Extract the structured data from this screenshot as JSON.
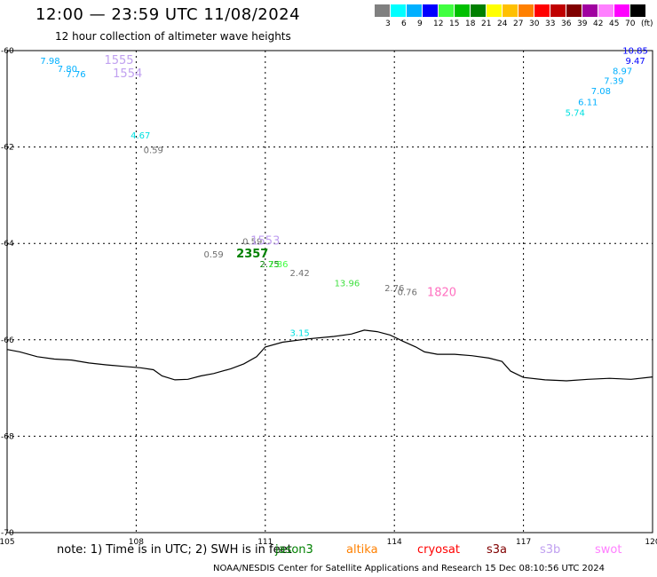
{
  "header": {
    "title": "12:00 — 23:59 UTC 11/08/2024",
    "subtitle": "12 hour collection of altimeter wave heights"
  },
  "colorbar": {
    "colors": [
      "#808080",
      "#00ffff",
      "#00b0ff",
      "#0000ff",
      "#40ff40",
      "#00c000",
      "#008000",
      "#ffff00",
      "#ffc000",
      "#ff8000",
      "#ff0000",
      "#c00000",
      "#800000",
      "#a000a0",
      "#ff80ff",
      "#ff00ff",
      "#000000"
    ],
    "labels": [
      "3",
      "6",
      "9",
      "12",
      "15",
      "18",
      "21",
      "24",
      "27",
      "30",
      "33",
      "36",
      "39",
      "42",
      "45",
      "70"
    ],
    "unit": "(ft)"
  },
  "axes": {
    "x_ticks": [
      "105",
      "108",
      "111",
      "114",
      "117",
      "120"
    ],
    "y_ticks": [
      "-60",
      "-62",
      "-64",
      "-66",
      "-68",
      "-70"
    ]
  },
  "observations": [
    {
      "lon": 106.0,
      "lat": -60.2,
      "text": "7.98",
      "color": "#00b0ff"
    },
    {
      "lon": 106.4,
      "lat": -60.37,
      "text": "7.80",
      "color": "#00b0ff"
    },
    {
      "lon": 106.6,
      "lat": -60.48,
      "text": "7.76",
      "color": "#00b0ff"
    },
    {
      "lon": 107.6,
      "lat": -60.2,
      "text": "1555",
      "color": "#c0a0f0"
    },
    {
      "lon": 107.8,
      "lat": -60.48,
      "text": "1554",
      "color": "#c0a0f0"
    },
    {
      "lon": 108.1,
      "lat": -61.75,
      "text": "4.67",
      "color": "#00e0e0"
    },
    {
      "lon": 108.4,
      "lat": -62.05,
      "text": "0.59",
      "color": "#707070"
    },
    {
      "lon": 110.7,
      "lat": -63.95,
      "text": "0.59",
      "color": "#707070"
    },
    {
      "lon": 111.0,
      "lat": -63.95,
      "text": "1553",
      "color": "#c0a0f0"
    },
    {
      "lon": 109.8,
      "lat": -64.22,
      "text": "0.59",
      "color": "#707070"
    },
    {
      "lon": 110.7,
      "lat": -64.22,
      "text": "2357",
      "color": "#008000"
    },
    {
      "lon": 111.1,
      "lat": -64.42,
      "text": "2.75",
      "color": "#008000"
    },
    {
      "lon": 111.3,
      "lat": -64.42,
      "text": "2.86",
      "color": "#40ff40"
    },
    {
      "lon": 111.8,
      "lat": -64.6,
      "text": "2.42",
      "color": "#707070"
    },
    {
      "lon": 112.9,
      "lat": -64.82,
      "text": "13.96",
      "color": "#40e040"
    },
    {
      "lon": 114.0,
      "lat": -64.92,
      "text": "2.76",
      "color": "#707070"
    },
    {
      "lon": 114.3,
      "lat": -65.0,
      "text": "0.76",
      "color": "#707070"
    },
    {
      "lon": 115.1,
      "lat": -65.02,
      "text": "1820",
      "color": "#ff70c0"
    },
    {
      "lon": 111.8,
      "lat": -65.85,
      "text": "3.15",
      "color": "#00e0e0"
    },
    {
      "lon": 119.6,
      "lat": -59.99,
      "text": "10.85",
      "color": "#0000ff"
    },
    {
      "lon": 119.6,
      "lat": -60.2,
      "text": "9.47",
      "color": "#0000ff"
    },
    {
      "lon": 119.3,
      "lat": -60.41,
      "text": "8.97",
      "color": "#00b0ff"
    },
    {
      "lon": 119.1,
      "lat": -60.62,
      "text": "7.39",
      "color": "#00b0ff"
    },
    {
      "lon": 118.8,
      "lat": -60.83,
      "text": "7.08",
      "color": "#00b0ff"
    },
    {
      "lon": 118.5,
      "lat": -61.06,
      "text": "6.11",
      "color": "#00b0ff"
    },
    {
      "lon": 118.2,
      "lat": -61.28,
      "text": "5.74",
      "color": "#00e0e0"
    }
  ],
  "coastline": [
    [
      105.0,
      -66.2
    ],
    [
      105.3,
      -66.25
    ],
    [
      105.7,
      -66.35
    ],
    [
      106.1,
      -66.4
    ],
    [
      106.5,
      -66.42
    ],
    [
      106.9,
      -66.48
    ],
    [
      107.3,
      -66.52
    ],
    [
      107.7,
      -66.55
    ],
    [
      108.1,
      -66.58
    ],
    [
      108.4,
      -66.62
    ],
    [
      108.6,
      -66.75
    ],
    [
      108.9,
      -66.83
    ],
    [
      109.2,
      -66.82
    ],
    [
      109.5,
      -66.75
    ],
    [
      109.8,
      -66.7
    ],
    [
      110.2,
      -66.6
    ],
    [
      110.5,
      -66.5
    ],
    [
      110.8,
      -66.35
    ],
    [
      111.0,
      -66.15
    ],
    [
      111.4,
      -66.05
    ],
    [
      112.0,
      -65.98
    ],
    [
      112.6,
      -65.93
    ],
    [
      113.0,
      -65.88
    ],
    [
      113.3,
      -65.8
    ],
    [
      113.6,
      -65.83
    ],
    [
      113.9,
      -65.9
    ],
    [
      114.2,
      -66.03
    ],
    [
      114.5,
      -66.15
    ],
    [
      114.7,
      -66.25
    ],
    [
      115.0,
      -66.3
    ],
    [
      115.4,
      -66.3
    ],
    [
      115.8,
      -66.33
    ],
    [
      116.2,
      -66.38
    ],
    [
      116.5,
      -66.45
    ],
    [
      116.7,
      -66.65
    ],
    [
      117.0,
      -66.78
    ],
    [
      117.5,
      -66.83
    ],
    [
      118.0,
      -66.85
    ],
    [
      118.5,
      -66.82
    ],
    [
      119.0,
      -66.8
    ],
    [
      119.5,
      -66.82
    ],
    [
      120.0,
      -66.77
    ]
  ],
  "notes": {
    "note_text": "note: 1) Time is in UTC; 2) SWH is in feet",
    "satellites": [
      {
        "name": "jason3",
        "color": "#008000"
      },
      {
        "name": "altika",
        "color": "#ff8000"
      },
      {
        "name": "cryosat",
        "color": "#ff0000"
      },
      {
        "name": "s3a",
        "color": "#800000"
      },
      {
        "name": "s3b",
        "color": "#c0a0f0"
      },
      {
        "name": "swot",
        "color": "#ff80ff"
      }
    ],
    "footer": "NOAA/NESDIS Center for Satellite Applications and Research    15 Dec 08:10:56 UTC 2024"
  }
}
